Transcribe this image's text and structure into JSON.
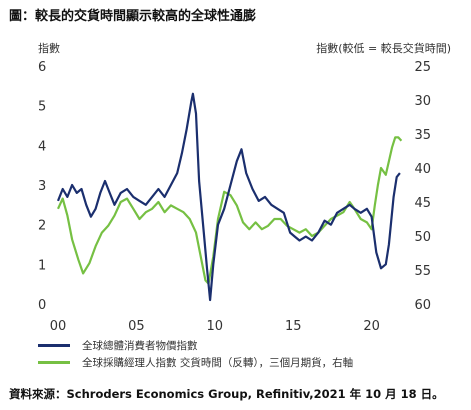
{
  "title": "圖：較長的交貨時間顯示較高的全球性通膨",
  "source": "資料來源：Schroders Economics Group, Refinitiv,2021 年 10 月 18 日。",
  "colors": {
    "cpi": "#1b2f6e",
    "pmi": "#76c043"
  },
  "chart_data": {
    "type": "line",
    "ylabel": "指數",
    "y2label": "指數(較低 = 較長交貨時間)",
    "x_tick_labels": [
      "00",
      "05",
      "10",
      "15",
      "20"
    ],
    "xlim": [
      2000,
      2022
    ],
    "ylim": [
      0,
      6
    ],
    "y_ticks": [
      "0",
      "1",
      "2",
      "3",
      "4",
      "5",
      "6"
    ],
    "y2lim": [
      60,
      25
    ],
    "y2_ticks": [
      "25",
      "30",
      "35",
      "40",
      "45",
      "50",
      "55",
      "60"
    ],
    "legend_position": "bottom",
    "series": [
      {
        "name": "全球總體消費者物價指數",
        "axis": "left",
        "color": "#1b2f6e",
        "points": [
          [
            2000.0,
            2.6
          ],
          [
            2000.3,
            2.9
          ],
          [
            2000.6,
            2.7
          ],
          [
            2000.9,
            3.0
          ],
          [
            2001.2,
            2.8
          ],
          [
            2001.5,
            2.9
          ],
          [
            2001.8,
            2.5
          ],
          [
            2002.1,
            2.2
          ],
          [
            2002.4,
            2.4
          ],
          [
            2002.7,
            2.8
          ],
          [
            2003.0,
            3.1
          ],
          [
            2003.3,
            2.8
          ],
          [
            2003.6,
            2.5
          ],
          [
            2004.0,
            2.8
          ],
          [
            2004.4,
            2.9
          ],
          [
            2004.8,
            2.7
          ],
          [
            2005.2,
            2.6
          ],
          [
            2005.6,
            2.5
          ],
          [
            2006.0,
            2.7
          ],
          [
            2006.4,
            2.9
          ],
          [
            2006.8,
            2.7
          ],
          [
            2007.2,
            3.0
          ],
          [
            2007.6,
            3.3
          ],
          [
            2007.9,
            3.8
          ],
          [
            2008.2,
            4.4
          ],
          [
            2008.5,
            5.1
          ],
          [
            2008.6,
            5.3
          ],
          [
            2008.8,
            4.8
          ],
          [
            2009.0,
            3.1
          ],
          [
            2009.3,
            1.8
          ],
          [
            2009.5,
            0.9
          ],
          [
            2009.7,
            0.1
          ],
          [
            2009.9,
            1.0
          ],
          [
            2010.2,
            2.0
          ],
          [
            2010.6,
            2.4
          ],
          [
            2011.0,
            3.0
          ],
          [
            2011.4,
            3.6
          ],
          [
            2011.7,
            3.9
          ],
          [
            2012.0,
            3.3
          ],
          [
            2012.4,
            2.9
          ],
          [
            2012.8,
            2.6
          ],
          [
            2013.2,
            2.7
          ],
          [
            2013.6,
            2.5
          ],
          [
            2014.0,
            2.4
          ],
          [
            2014.4,
            2.3
          ],
          [
            2014.8,
            1.8
          ],
          [
            2015.1,
            1.7
          ],
          [
            2015.4,
            1.6
          ],
          [
            2015.8,
            1.7
          ],
          [
            2016.2,
            1.6
          ],
          [
            2016.6,
            1.8
          ],
          [
            2017.0,
            2.1
          ],
          [
            2017.4,
            2.0
          ],
          [
            2017.8,
            2.3
          ],
          [
            2018.2,
            2.4
          ],
          [
            2018.6,
            2.5
          ],
          [
            2018.9,
            2.4
          ],
          [
            2019.3,
            2.3
          ],
          [
            2019.7,
            2.4
          ],
          [
            2020.0,
            2.2
          ],
          [
            2020.3,
            1.3
          ],
          [
            2020.6,
            0.9
          ],
          [
            2020.9,
            1.0
          ],
          [
            2021.1,
            1.5
          ],
          [
            2021.4,
            2.7
          ],
          [
            2021.6,
            3.2
          ],
          [
            2021.8,
            3.3
          ]
        ]
      },
      {
        "name": "全球採購經理人指數 交貨時間（反轉），三個月期貨，右軸",
        "axis": "right",
        "color": "#76c043",
        "points": [
          [
            2000.0,
            46.0
          ],
          [
            2000.3,
            44.5
          ],
          [
            2000.6,
            47.0
          ],
          [
            2000.9,
            50.5
          ],
          [
            2001.3,
            53.5
          ],
          [
            2001.6,
            55.5
          ],
          [
            2002.0,
            54.0
          ],
          [
            2002.4,
            51.5
          ],
          [
            2002.8,
            49.5
          ],
          [
            2003.2,
            48.5
          ],
          [
            2003.6,
            47.0
          ],
          [
            2004.0,
            45.0
          ],
          [
            2004.4,
            44.5
          ],
          [
            2004.8,
            46.0
          ],
          [
            2005.2,
            47.5
          ],
          [
            2005.6,
            46.5
          ],
          [
            2006.0,
            46.0
          ],
          [
            2006.4,
            45.0
          ],
          [
            2006.8,
            46.5
          ],
          [
            2007.2,
            45.5
          ],
          [
            2007.6,
            46.0
          ],
          [
            2008.0,
            46.5
          ],
          [
            2008.4,
            47.5
          ],
          [
            2008.8,
            49.5
          ],
          [
            2009.1,
            53.0
          ],
          [
            2009.4,
            56.5
          ],
          [
            2009.6,
            57.0
          ],
          [
            2009.9,
            53.0
          ],
          [
            2010.2,
            47.5
          ],
          [
            2010.6,
            43.5
          ],
          [
            2011.0,
            44.0
          ],
          [
            2011.4,
            45.5
          ],
          [
            2011.8,
            48.0
          ],
          [
            2012.2,
            49.0
          ],
          [
            2012.6,
            48.0
          ],
          [
            2013.0,
            49.0
          ],
          [
            2013.4,
            48.5
          ],
          [
            2013.8,
            47.5
          ],
          [
            2014.2,
            47.5
          ],
          [
            2014.6,
            48.5
          ],
          [
            2015.0,
            49.0
          ],
          [
            2015.4,
            49.5
          ],
          [
            2015.8,
            49.0
          ],
          [
            2016.2,
            50.0
          ],
          [
            2016.6,
            49.5
          ],
          [
            2017.0,
            48.5
          ],
          [
            2017.4,
            47.5
          ],
          [
            2017.8,
            47.0
          ],
          [
            2018.2,
            46.5
          ],
          [
            2018.6,
            45.0
          ],
          [
            2018.9,
            46.0
          ],
          [
            2019.3,
            47.5
          ],
          [
            2019.7,
            48.0
          ],
          [
            2020.0,
            49.0
          ],
          [
            2020.2,
            45.5
          ],
          [
            2020.4,
            42.5
          ],
          [
            2020.6,
            40.0
          ],
          [
            2020.9,
            41.0
          ],
          [
            2021.1,
            39.0
          ],
          [
            2021.3,
            37.0
          ],
          [
            2021.5,
            35.5
          ],
          [
            2021.7,
            35.5
          ],
          [
            2021.9,
            36.0
          ]
        ]
      }
    ]
  }
}
